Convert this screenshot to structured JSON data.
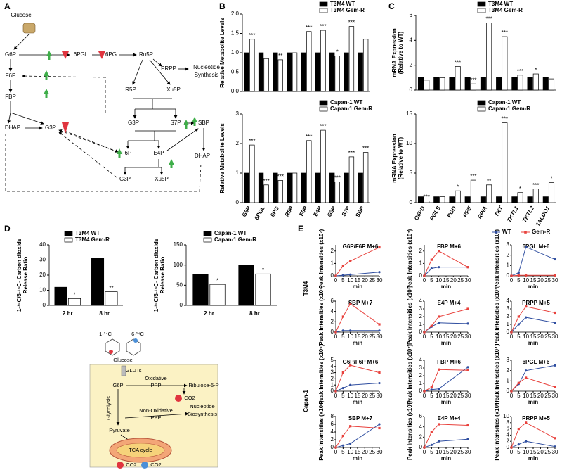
{
  "panel_labels": [
    "A",
    "B",
    "C",
    "D",
    "E"
  ],
  "pathway": {
    "nodes": [
      "Glucose",
      "G6P",
      "F6P",
      "FBP",
      "DHAP",
      "G3P",
      "6PGL",
      "6PG",
      "Ru5P",
      "PRPP",
      "Nucleotide",
      "Synthesis",
      "R5P",
      "Xu5P",
      "G3P",
      "S7P",
      "SBP",
      "F6P",
      "E4P",
      "DHAP",
      "G3P",
      "Xu5P"
    ]
  },
  "schematic": {
    "labels": [
      "1-¹⁴C",
      "6-¹⁴C",
      "Glucose",
      "GLUTs",
      "G6P",
      "Oxidative",
      "PPP",
      "Ribulose-5-P",
      "CO2",
      "Glycolysis",
      "Non-Oxidative",
      "PPP",
      "Nucleotide",
      "Biosynthesis",
      "Pyruvate",
      "TCA cycle",
      "CO2",
      "CO2"
    ]
  },
  "row_labels": [
    "T3M4",
    "Capan-1"
  ],
  "line_legend": [
    {
      "name": "WT",
      "color": "#2f4ea0"
    },
    {
      "name": "Gem-R",
      "color": "#e8413c"
    }
  ],
  "chart_data": [
    {
      "type": "bar",
      "ylabel": [
        "Relative Metabolite Levels"
      ],
      "ylim": [
        0,
        2
      ],
      "yticks": [
        {
          "value": 0,
          "label": "0.0"
        },
        0.5,
        {
          "value": 1,
          "label": "1.0"
        },
        1.5,
        {
          "value": 2,
          "label": "2.0"
        }
      ],
      "series": [
        {
          "name": "T3M4 WT",
          "color": "#000000",
          "values": [
            1,
            1,
            1,
            1,
            1,
            1,
            1,
            1,
            1
          ]
        },
        {
          "name": "T3M4 Gem-R",
          "color": "#ffffff",
          "values": [
            1.35,
            0.85,
            0.82,
            1.0,
            1.55,
            1.58,
            0.92,
            1.68,
            1.35
          ],
          "significance": [
            "***",
            null,
            "**",
            null,
            "***",
            "***",
            "*",
            "***",
            null
          ]
        }
      ]
    },
    {
      "type": "bar",
      "ylabel": [
        "Relative Metabolite Levels"
      ],
      "ylim": [
        0,
        3
      ],
      "yticks": [
        0,
        1,
        2,
        3
      ],
      "categories": [
        "G6P",
        "6PGL",
        "6PG",
        "R5P",
        "F6P",
        "E4P",
        "G3P",
        "S7P",
        "SBP"
      ],
      "series": [
        {
          "name": "Capan-1 WT",
          "color": "#000000",
          "values": [
            1,
            1,
            1,
            1,
            1,
            1,
            1,
            1,
            1
          ]
        },
        {
          "name": "Capan-1 Gem-R",
          "color": "#ffffff",
          "values": [
            1.95,
            0.6,
            0.75,
            1.0,
            2.1,
            2.45,
            0.7,
            1.55,
            1.7
          ],
          "significance": [
            "***",
            "***",
            "***",
            null,
            "***",
            "***",
            "***",
            "***",
            "***"
          ]
        }
      ]
    },
    {
      "type": "bar",
      "ylabel": [
        "mRNA Expression",
        "(Relative to WT)"
      ],
      "ylim": [
        0,
        6
      ],
      "yticks": [
        0,
        2,
        4,
        6
      ],
      "series": [
        {
          "name": "T3M4 WT",
          "color": "#000000",
          "values": [
            1,
            1,
            1,
            1,
            1,
            1,
            1,
            1,
            1
          ]
        },
        {
          "name": "T3M4 Gem-R",
          "color": "#ffffff",
          "values": [
            0.8,
            1.0,
            1.9,
            0.5,
            5.4,
            4.3,
            1.2,
            1.3,
            0.9
          ],
          "significance": [
            null,
            null,
            "***",
            "***",
            "***",
            "***",
            "***",
            "*",
            null
          ]
        }
      ]
    },
    {
      "type": "bar",
      "ylabel": [
        "mRNA Expression",
        "(Relative to WT)"
      ],
      "ylim": [
        0,
        15
      ],
      "yticks": [
        0,
        5,
        10,
        15
      ],
      "categories": [
        "G6PD",
        "PGLS",
        "PGD",
        "RPE",
        "RPIA",
        "TKT",
        "TKTL1",
        "TKTL2",
        "TALDO1"
      ],
      "series": [
        {
          "name": "Capan-1 WT",
          "color": "#000000",
          "values": [
            1,
            1,
            1,
            1,
            1,
            1,
            1,
            1,
            1
          ]
        },
        {
          "name": "Capan-1 Gem-R",
          "color": "#ffffff",
          "values": [
            0.3,
            1.0,
            2.0,
            3.8,
            3.0,
            13.5,
            1.7,
            2.3,
            3.4
          ],
          "significance": [
            "***",
            null,
            "*",
            "***",
            "**",
            "***",
            "*",
            "***",
            "*"
          ]
        }
      ]
    },
    {
      "type": "bar",
      "ylabel": [
        "1-¹⁴C/6-¹⁴C- Carbon dioxide",
        "Release Ratio"
      ],
      "ylim": [
        0,
        40
      ],
      "yticks": [
        0,
        10,
        20,
        30,
        40
      ],
      "categories": [
        "2 hr",
        "8 hr"
      ],
      "series": [
        {
          "name": "T3M4 WT",
          "color": "#000000",
          "values": [
            12,
            31
          ]
        },
        {
          "name": "T3M4 Gem-R",
          "color": "#ffffff",
          "values": [
            4.5,
            9
          ],
          "significance": [
            "*",
            "**"
          ]
        }
      ]
    },
    {
      "type": "bar",
      "ylabel": [
        "1-¹⁴C/6-¹⁴C- Carbon dioxide",
        "Release Ratio"
      ],
      "ylim": [
        0,
        150
      ],
      "yticks": [
        0,
        50,
        100,
        150
      ],
      "categories": [
        "2 hr",
        "8 hr"
      ],
      "series": [
        {
          "name": "Capan-1 WT",
          "color": "#000000",
          "values": [
            77,
            100
          ]
        },
        {
          "name": "Capan-1 Gem-R",
          "color": "#ffffff",
          "values": [
            52,
            78
          ],
          "significance": [
            "*",
            "*"
          ]
        }
      ]
    },
    {
      "type": "line",
      "title": "G6P/F6P M+6",
      "ylabel": "Peak Intensities (x10⁷)",
      "xlabel": "min",
      "x": [
        0,
        5,
        10,
        30
      ],
      "xlim": [
        0,
        30
      ],
      "xticks": [
        0,
        5,
        10,
        15,
        20,
        25,
        30
      ],
      "ylim": [
        0,
        2.5
      ],
      "yticks": [
        0,
        1,
        2
      ],
      "series": [
        {
          "values": [
            0,
            0.05,
            0.1,
            0.3
          ]
        },
        {
          "values": [
            0,
            0.8,
            1.2,
            2.3
          ]
        }
      ]
    },
    {
      "type": "line",
      "title": "FBP M+6",
      "ylabel": "Peak Intensities (x10⁷)",
      "xlabel": "min",
      "x": [
        0,
        5,
        10,
        30
      ],
      "xlim": [
        0,
        30
      ],
      "xticks": [
        0,
        5,
        10,
        15,
        20,
        25,
        30
      ],
      "ylim": [
        0,
        2.5
      ],
      "yticks": [
        0,
        1,
        2
      ],
      "series": [
        {
          "values": [
            0,
            0.6,
            0.7,
            0.7
          ]
        },
        {
          "values": [
            0,
            1.3,
            2,
            0.7
          ]
        }
      ]
    },
    {
      "type": "line",
      "title": "6PGL M+6",
      "ylabel": "Peak Intensities (x10³)",
      "xlabel": "min",
      "x": [
        0,
        5,
        10,
        30
      ],
      "xlim": [
        0,
        30
      ],
      "xticks": [
        0,
        5,
        10,
        15,
        20,
        25,
        30
      ],
      "ylim": [
        0,
        3
      ],
      "yticks": [
        0,
        1,
        2,
        3
      ],
      "series": [
        {
          "values": [
            0,
            0.3,
            2.8,
            1.6
          ]
        },
        {
          "values": [
            0,
            0.05,
            0.05,
            0.05
          ]
        }
      ]
    },
    {
      "type": "line",
      "title": "SBP M+7",
      "ylabel": "Peak Intensities (x10⁵)",
      "xlabel": "min",
      "x": [
        0,
        5,
        10,
        30
      ],
      "xlim": [
        0,
        30
      ],
      "xticks": [
        0,
        5,
        10,
        15,
        20,
        25,
        30
      ],
      "ylim": [
        0,
        6
      ],
      "yticks": [
        0,
        2,
        4,
        6
      ],
      "series": [
        {
          "values": [
            0,
            0.3,
            0.3,
            0.3
          ]
        },
        {
          "values": [
            0,
            3,
            5.5,
            1.5
          ]
        }
      ]
    },
    {
      "type": "line",
      "title": "E4P M+4",
      "ylabel": "Peak Intensities (x10³)",
      "xlabel": "min",
      "x": [
        0,
        5,
        10,
        30
      ],
      "xlim": [
        0,
        30
      ],
      "xticks": [
        0,
        5,
        10,
        15,
        20,
        25,
        30
      ],
      "ylim": [
        0,
        4
      ],
      "yticks": [
        0,
        1,
        2,
        3,
        4
      ],
      "series": [
        {
          "values": [
            0,
            0.7,
            1.2,
            1.1
          ]
        },
        {
          "values": [
            0,
            0.8,
            2,
            3
          ]
        }
      ]
    },
    {
      "type": "line",
      "title": "PRPP M+5",
      "ylabel": "Peak Intensities (x10⁵)",
      "xlabel": "min",
      "x": [
        0,
        5,
        10,
        30
      ],
      "xlim": [
        0,
        30
      ],
      "xticks": [
        0,
        5,
        10,
        15,
        20,
        25,
        30
      ],
      "ylim": [
        0,
        4
      ],
      "yticks": [
        0,
        1,
        2,
        3,
        4
      ],
      "series": [
        {
          "values": [
            0,
            1,
            1.9,
            1.2
          ]
        },
        {
          "values": [
            0,
            2,
            3.3,
            2.5
          ]
        }
      ]
    },
    {
      "type": "line",
      "title": "G6P/F6P M+6",
      "ylabel": "Peak Intensities (x10⁶)",
      "xlabel": "min",
      "x": [
        0,
        5,
        10,
        30
      ],
      "xlim": [
        0,
        30
      ],
      "xticks": [
        0,
        5,
        10,
        15,
        20,
        25,
        30
      ],
      "ylim": [
        0,
        5
      ],
      "yticks": [
        0,
        1,
        2,
        3,
        4,
        5
      ],
      "series": [
        {
          "values": [
            0,
            0.5,
            1,
            1.3
          ]
        },
        {
          "values": [
            0,
            3,
            4.2,
            3
          ]
        }
      ]
    },
    {
      "type": "line",
      "title": "FBP M+6",
      "ylabel": "Peak Intensities (x10⁷)",
      "xlabel": "min",
      "x": [
        0,
        5,
        10,
        30
      ],
      "xlim": [
        0,
        30
      ],
      "xticks": [
        0,
        5,
        10,
        15,
        20,
        25,
        30
      ],
      "ylim": [
        0,
        4
      ],
      "yticks": [
        0,
        1,
        2,
        3,
        4
      ],
      "series": [
        {
          "values": [
            0,
            0.2,
            0.3,
            3.1
          ]
        },
        {
          "values": [
            0,
            0.5,
            2.8,
            2.7
          ]
        }
      ]
    },
    {
      "type": "line",
      "title": "6PGL M+6",
      "ylabel": "Peak Intensities (x10⁴)",
      "xlabel": "min",
      "x": [
        0,
        5,
        10,
        30
      ],
      "xlim": [
        0,
        30
      ],
      "xticks": [
        0,
        5,
        10,
        15,
        20,
        25,
        30
      ],
      "ylim": [
        0,
        3
      ],
      "yticks": [
        0,
        1,
        2,
        3
      ],
      "series": [
        {
          "values": [
            0,
            0.7,
            2,
            2.5
          ]
        },
        {
          "values": [
            0,
            0.8,
            1.3,
            0.4
          ]
        }
      ]
    },
    {
      "type": "line",
      "title": "SBP M+7",
      "ylabel": "Peak Intensities (x10⁵)",
      "xlabel": "min",
      "x": [
        0,
        5,
        10,
        30
      ],
      "xlim": [
        0,
        30
      ],
      "xticks": [
        0,
        5,
        10,
        15,
        20,
        25,
        30
      ],
      "ylim": [
        0,
        8
      ],
      "yticks": [
        0,
        2,
        4,
        6,
        8
      ],
      "series": [
        {
          "values": [
            0,
            0.5,
            1,
            6
          ]
        },
        {
          "values": [
            0,
            3,
            5.5,
            5
          ]
        }
      ]
    },
    {
      "type": "line",
      "title": "E4P M+4",
      "ylabel": "Peak Intensities (x10³)",
      "xlabel": "min",
      "x": [
        0,
        5,
        10,
        30
      ],
      "xlim": [
        0,
        30
      ],
      "xticks": [
        0,
        5,
        10,
        15,
        20,
        25,
        30
      ],
      "ylim": [
        0,
        6
      ],
      "yticks": [
        0,
        2,
        4,
        6
      ],
      "series": [
        {
          "values": [
            0,
            0.5,
            1.2,
            1.6
          ]
        },
        {
          "values": [
            0,
            3,
            4.5,
            4.3
          ]
        }
      ]
    },
    {
      "type": "line",
      "title": "PRPP M+5",
      "ylabel": "Peak Intensities (x10⁵)",
      "xlabel": "min",
      "x": [
        0,
        5,
        10,
        30
      ],
      "xlim": [
        0,
        30
      ],
      "xticks": [
        0,
        5,
        10,
        15,
        20,
        25,
        30
      ],
      "ylim": [
        0,
        10
      ],
      "yticks": [
        0,
        2,
        4,
        6,
        8,
        10
      ],
      "series": [
        {
          "values": [
            0,
            1,
            2,
            0.3
          ]
        },
        {
          "values": [
            0,
            6,
            8,
            3
          ]
        }
      ]
    }
  ]
}
